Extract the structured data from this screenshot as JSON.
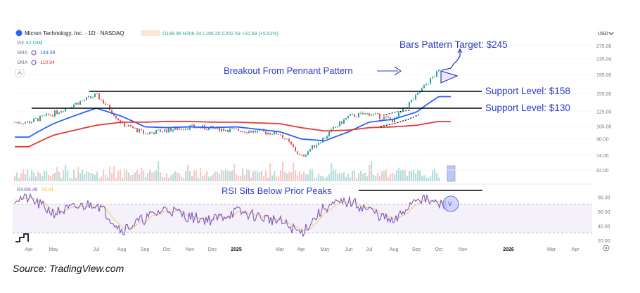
{
  "header": {
    "symbol": "Micron Technology, Inc. · 1D · NASDAQ",
    "ohlc": "O199.96 H206.34 L195.20 C202.53 +10.59 (+5.52%)",
    "vol_label": "Vol",
    "vol_value": "42.04M",
    "sma1_label": "SMA",
    "sma1_value": "149.39",
    "sma2_label": "SMA",
    "sma2_value": "110.94",
    "currency": "USD",
    "up_color": "#26a69a",
    "down_color": "#ef5350"
  },
  "annotations": {
    "bars_target": "Bars Pattern Target: $245",
    "breakout": "Breakout From Pennant Pattern",
    "support_158": "Support Level: $158",
    "support_130": "Support Level: $130",
    "rsi_note": "RSI Sits Below Prior Peaks",
    "annotation_color": "#2b3bc4"
  },
  "rsi_header": {
    "label": "RSI",
    "value1": "69.46",
    "value2": "72.01"
  },
  "source": "Source: TradingView.com",
  "chart_data": [
    {
      "type": "line",
      "price_axis_ticks": [
        275,
        235,
        195,
        155,
        125,
        105,
        90,
        74,
        62
      ],
      "scale": "log",
      "ylim": [
        55,
        290
      ],
      "x_ticks": [
        "Apr",
        "May",
        "Jul",
        "Aug",
        "Sep",
        "Oct",
        "Nov",
        "Dec",
        "2025",
        "Mar",
        "Apr",
        "May",
        "Jun",
        "Jul",
        "Aug",
        "Sep",
        "Oct",
        "Nov",
        "2026",
        "Mar",
        "Apr"
      ],
      "series": [
        {
          "x": [
            "Apr",
            "May",
            "Jul",
            "Aug",
            "Sep",
            "Oct",
            "Nov",
            "Dec",
            "2025",
            "Mar",
            "Apr",
            "May",
            "Jun",
            "Jul",
            "Aug",
            "Sep",
            "Oct"
          ],
          "values": [
            110,
            122,
            152,
            108,
            96,
            100,
            104,
            102,
            100,
            96,
            72,
            92,
            118,
            122,
            112,
            150,
            202.53
          ],
          "color": "#131722"
        },
        {
          "name": "SMA",
          "x": [
            "Apr",
            "May",
            "Jul",
            "Aug",
            "Sep",
            "Oct",
            "Nov",
            "Dec",
            "2025",
            "Mar",
            "Apr",
            "May",
            "Jun",
            "Jul",
            "Aug",
            "Sep",
            "Oct"
          ],
          "values": [
            92,
            108,
            130,
            118,
            104,
            103,
            104,
            103,
            104,
            98,
            90,
            88,
            98,
            110,
            114,
            124,
            149.39
          ],
          "color": "#2962ff"
        },
        {
          "name": "SMA",
          "x": [
            "Apr",
            "May",
            "Jul",
            "Aug",
            "Sep",
            "Oct",
            "Nov",
            "Dec",
            "2025",
            "Mar",
            "Apr",
            "May",
            "Jun",
            "Jul",
            "Aug",
            "Sep",
            "Oct"
          ],
          "values": [
            82,
            94,
            106,
            110,
            110,
            111,
            111,
            110,
            110,
            108,
            103,
            99,
            100,
            103,
            104,
            106,
            110.94
          ],
          "color": "#e53935"
        }
      ],
      "support_levels": [
        158,
        130
      ],
      "target": 245
    },
    {
      "type": "line",
      "title": "RSI",
      "ylim": [
        20,
        90
      ],
      "y_ticks": [
        80,
        60,
        40,
        20
      ],
      "bands": [
        70,
        30
      ],
      "series": [
        {
          "x": [
            "Apr",
            "May",
            "Jul",
            "Aug",
            "Sep",
            "Oct",
            "Nov",
            "Dec",
            "2025",
            "Mar",
            "Apr",
            "May",
            "Jun",
            "Jul",
            "Aug",
            "Sep",
            "Oct"
          ],
          "values": [
            78,
            58,
            72,
            34,
            50,
            64,
            52,
            48,
            60,
            46,
            30,
            66,
            74,
            62,
            44,
            80,
            69.46
          ],
          "color": "#7e57c2"
        }
      ],
      "peak_line": 83
    }
  ]
}
